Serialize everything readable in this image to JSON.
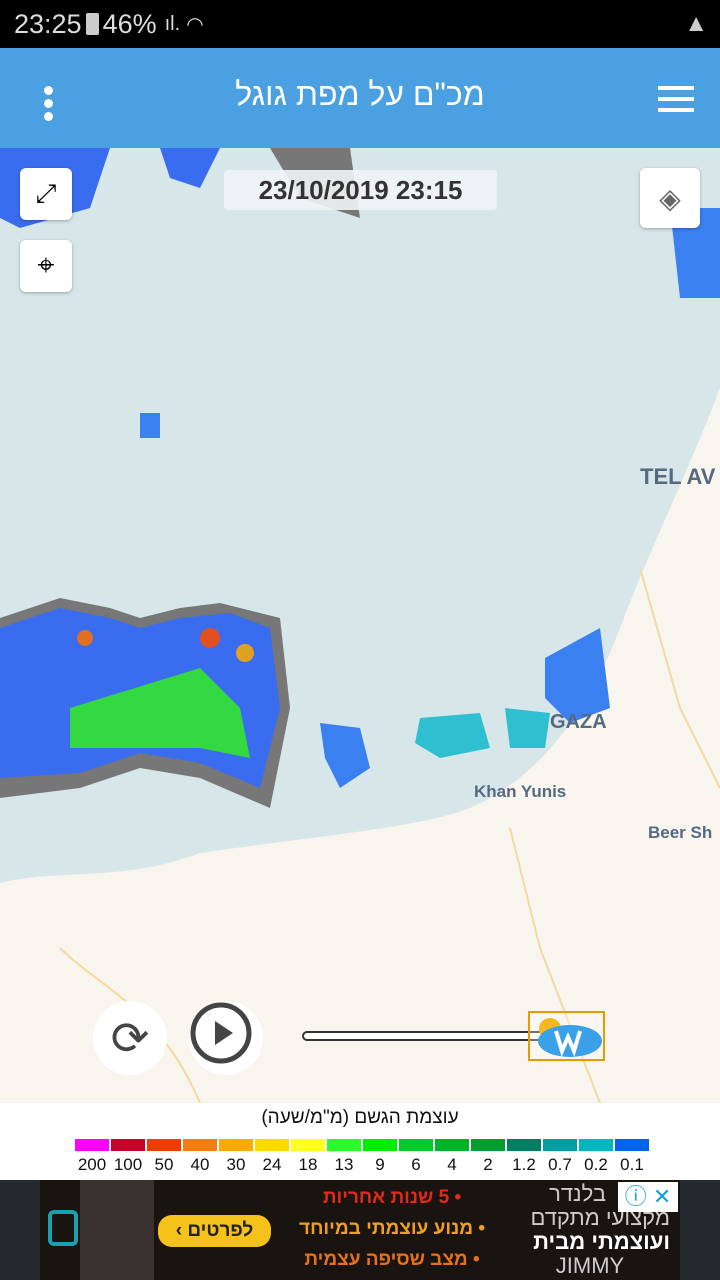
{
  "status_bar": {
    "time": "23:25",
    "battery": "46%",
    "icons": [
      "battery-icon",
      "signal-icon",
      "wifi-icon",
      "warning-icon"
    ]
  },
  "app_bar": {
    "title": "מכ\"ם על מפת גוגל",
    "icons": [
      "more-vert-icon",
      "menu-icon"
    ]
  },
  "map": {
    "timestamp": "23/10/2019 23:15",
    "labels": {
      "tel_aviv": "TEL AV",
      "gaza": "GAZA",
      "khan_yunis": "Khan Yunis",
      "beer_sheva": "Beer Sh"
    },
    "controls": [
      "fullscreen-icon",
      "my-location-icon",
      "layers-icon",
      "refresh-icon",
      "play-icon"
    ],
    "slider_progress": 1.0
  },
  "legend": {
    "title": "עוצמת הגשם (מ\"מ/שעה)",
    "items": [
      {
        "label": "200",
        "color": "#ff00ff"
      },
      {
        "label": "100",
        "color": "#c8002a"
      },
      {
        "label": "50",
        "color": "#f03c00"
      },
      {
        "label": "40",
        "color": "#f57d10"
      },
      {
        "label": "30",
        "color": "#ffaa00"
      },
      {
        "label": "24",
        "color": "#ffd800"
      },
      {
        "label": "18",
        "color": "#ffff20"
      },
      {
        "label": "13",
        "color": "#28ff28"
      },
      {
        "label": "9",
        "color": "#00ee00"
      },
      {
        "label": "6",
        "color": "#00cc28"
      },
      {
        "label": "4",
        "color": "#00b428"
      },
      {
        "label": "2",
        "color": "#00a030"
      },
      {
        "label": "1.2",
        "color": "#008060"
      },
      {
        "label": "0.7",
        "color": "#00a0a0"
      },
      {
        "label": "0.2",
        "color": "#00b8c0"
      },
      {
        "label": "0.1",
        "color": "#0064f0"
      }
    ]
  },
  "ad": {
    "line1": "• 5 שנות אחריות",
    "line2": "• מנוע עוצמתי במיוחד",
    "line3": "• מצב שסיפה עצמית",
    "cta": "לפרטים ›",
    "brand1": "בלנדר",
    "brand2": "מקצועי מתקדם",
    "brand3": "ועוצמתי מבית",
    "brand4": "JIMMY"
  }
}
